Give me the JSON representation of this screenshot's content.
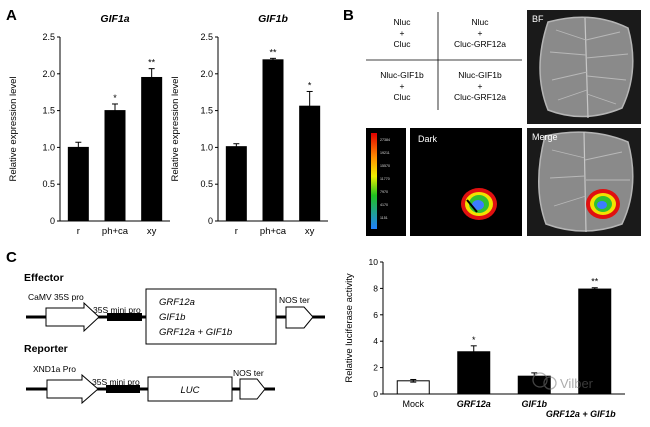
{
  "panels": {
    "A": {
      "letter": "A",
      "ylabel": "Relative expression level",
      "charts": [
        {
          "title": "GIF1a"
        },
        {
          "title": "GIF1b"
        }
      ]
    },
    "B": {
      "letter": "B",
      "grid": {
        "tl": [
          "Nluc",
          "+",
          "Cluc"
        ],
        "tr": [
          "Nluc",
          "+",
          "Cluc-GRF12a"
        ],
        "bl": [
          "Nluc-GIF1b",
          "+",
          "Cluc"
        ],
        "br": [
          "Nluc-GIF1b",
          "+",
          "Cluc-GRF12a"
        ]
      },
      "bf_label": "BF",
      "dark_label": "Dark",
      "merge_label": "Merge",
      "colorbar_ticks": [
        "27384",
        "19211",
        "15570",
        "11770",
        "7970",
        "4170",
        "1151"
      ]
    },
    "C": {
      "letter": "C",
      "effector": {
        "title": "Effector",
        "promoter": "CaMV 35S pro",
        "mini_pro": "35S mini pro",
        "genes": [
          "GRF12a",
          "GIF1b",
          "GRF12a + GIF1b"
        ],
        "terminator": "NOS ter"
      },
      "reporter": {
        "title": "Reporter",
        "promoter": "XND1a Pro",
        "mini_pro": "35S mini pro",
        "gene": "LUC",
        "terminator": "NOS ter"
      }
    },
    "watermark": "Vilber"
  },
  "chart_data": [
    {
      "type": "bar",
      "title": "GIF1a",
      "ylabel": "Relative expression level",
      "categories": [
        "r",
        "ph+ca",
        "xy"
      ],
      "values": [
        1.0,
        1.5,
        1.95
      ],
      "errors": [
        0.07,
        0.09,
        0.12
      ],
      "significance": [
        "",
        "*",
        "**"
      ],
      "ylim": [
        0,
        2.5
      ],
      "yticks": [
        "0",
        "0.5",
        "1.0",
        "1.5",
        "2.0",
        "2.5"
      ]
    },
    {
      "type": "bar",
      "title": "GIF1b",
      "ylabel": "Relative expression level",
      "categories": [
        "r",
        "ph+ca",
        "xy"
      ],
      "values": [
        1.01,
        2.19,
        1.56
      ],
      "errors": [
        0.04,
        0.02,
        0.2
      ],
      "significance": [
        "",
        "**",
        "*"
      ],
      "ylim": [
        0,
        2.5
      ],
      "yticks": [
        "0",
        "0.5",
        "1.0",
        "1.5",
        "2.0",
        "2.5"
      ]
    },
    {
      "type": "bar",
      "title": "",
      "ylabel": "Relative luciferase activity",
      "categories": [
        "Mock",
        "GRF12a",
        "GIF1b",
        "GRF12a + GIF1b"
      ],
      "values": [
        1.0,
        3.2,
        1.35,
        7.95
      ],
      "errors": [
        0.1,
        0.45,
        0.25,
        0.1
      ],
      "significance": [
        "",
        "*",
        "",
        "**"
      ],
      "bar_fill": [
        "#ffffff",
        "#000000",
        "#000000",
        "#000000"
      ],
      "ylim": [
        0,
        10
      ],
      "yticks": [
        "0",
        "2",
        "4",
        "6",
        "8",
        "10"
      ]
    }
  ]
}
